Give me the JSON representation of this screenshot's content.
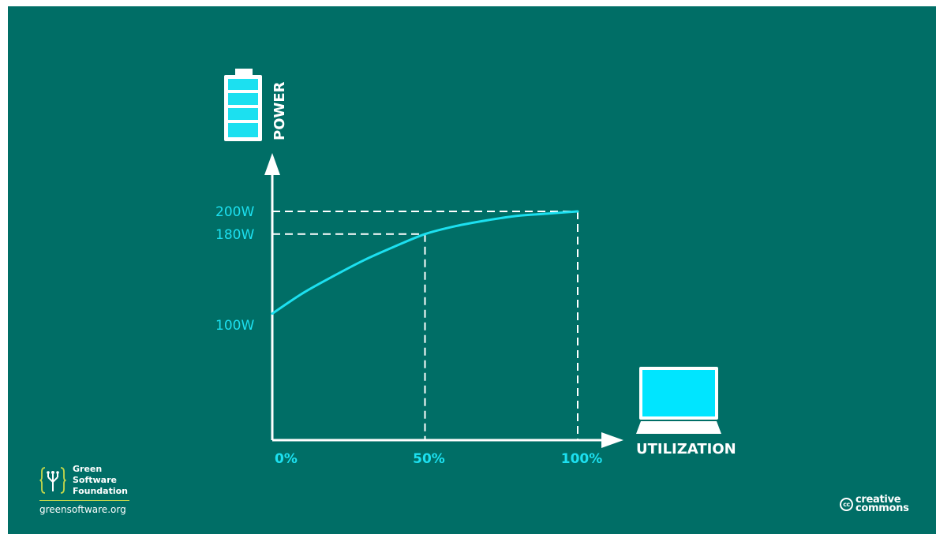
{
  "colors": {
    "background": "#006e66",
    "accent": "#1ce0f0",
    "axis": "#ffffff"
  },
  "chart_data": {
    "type": "line",
    "title": "",
    "xlabel": "UTILIZATION",
    "ylabel": "POWER",
    "x_ticks": [
      {
        "label": "0%",
        "value": 0
      },
      {
        "label": "50%",
        "value": 50
      },
      {
        "label": "100%",
        "value": 100
      }
    ],
    "y_ticks": [
      {
        "label": "100W",
        "value": 100
      },
      {
        "label": "180W",
        "value": 180
      },
      {
        "label": "200W",
        "value": 200
      }
    ],
    "xlim": [
      0,
      100
    ],
    "ylim": [
      0,
      220
    ],
    "series": [
      {
        "x": [
          0,
          10,
          20,
          30,
          40,
          50,
          60,
          70,
          80,
          90,
          100
        ],
        "y": [
          110,
          128,
          143,
          157,
          169,
          180,
          187,
          192,
          196,
          198,
          200
        ]
      }
    ],
    "reference_lines": [
      {
        "x": 50,
        "y": 180
      },
      {
        "x": 100,
        "y": 200
      }
    ],
    "grid": false,
    "legend": "none"
  },
  "icons": {
    "y_axis": "battery-icon",
    "x_axis": "laptop-icon",
    "logo": "green-software-foundation-logo-icon",
    "license": "creative-commons-icon"
  },
  "brand": {
    "name_lines": [
      "Green",
      "Software",
      "Foundation"
    ],
    "url": "greensoftware.org"
  },
  "license": {
    "badge": "cc",
    "text_lines": [
      "creative",
      "commons"
    ]
  }
}
